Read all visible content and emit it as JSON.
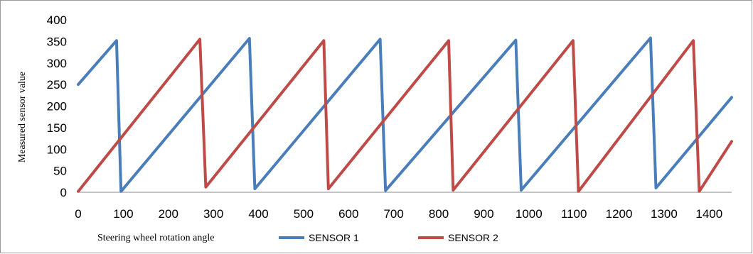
{
  "chart_data": {
    "type": "line",
    "title": "",
    "xlabel": "Steering wheel rotation angle",
    "ylabel": "Measured sensor value",
    "xlim": [
      0,
      1450
    ],
    "ylim": [
      0,
      400
    ],
    "xticks": [
      0,
      100,
      200,
      300,
      400,
      500,
      600,
      700,
      800,
      900,
      1000,
      1100,
      1200,
      1300,
      1400
    ],
    "yticks": [
      0,
      50,
      100,
      150,
      200,
      250,
      300,
      350,
      400
    ],
    "grid": false,
    "legend": "bottom",
    "series": [
      {
        "name": "SENSOR 1",
        "color": "#4a7ebb",
        "x": [
          0,
          85,
          95,
          380,
          392,
          670,
          682,
          971,
          983,
          1270,
          1282,
          1450
        ],
        "y": [
          250,
          352,
          2,
          357,
          8,
          355,
          4,
          353,
          5,
          358,
          10,
          220
        ]
      },
      {
        "name": "SENSOR 2",
        "color": "#be4b48",
        "x": [
          0,
          270,
          283,
          545,
          555,
          822,
          832,
          1098,
          1110,
          1365,
          1378,
          1450
        ],
        "y": [
          2,
          355,
          12,
          352,
          8,
          352,
          5,
          352,
          2,
          352,
          2,
          118
        ]
      }
    ]
  }
}
